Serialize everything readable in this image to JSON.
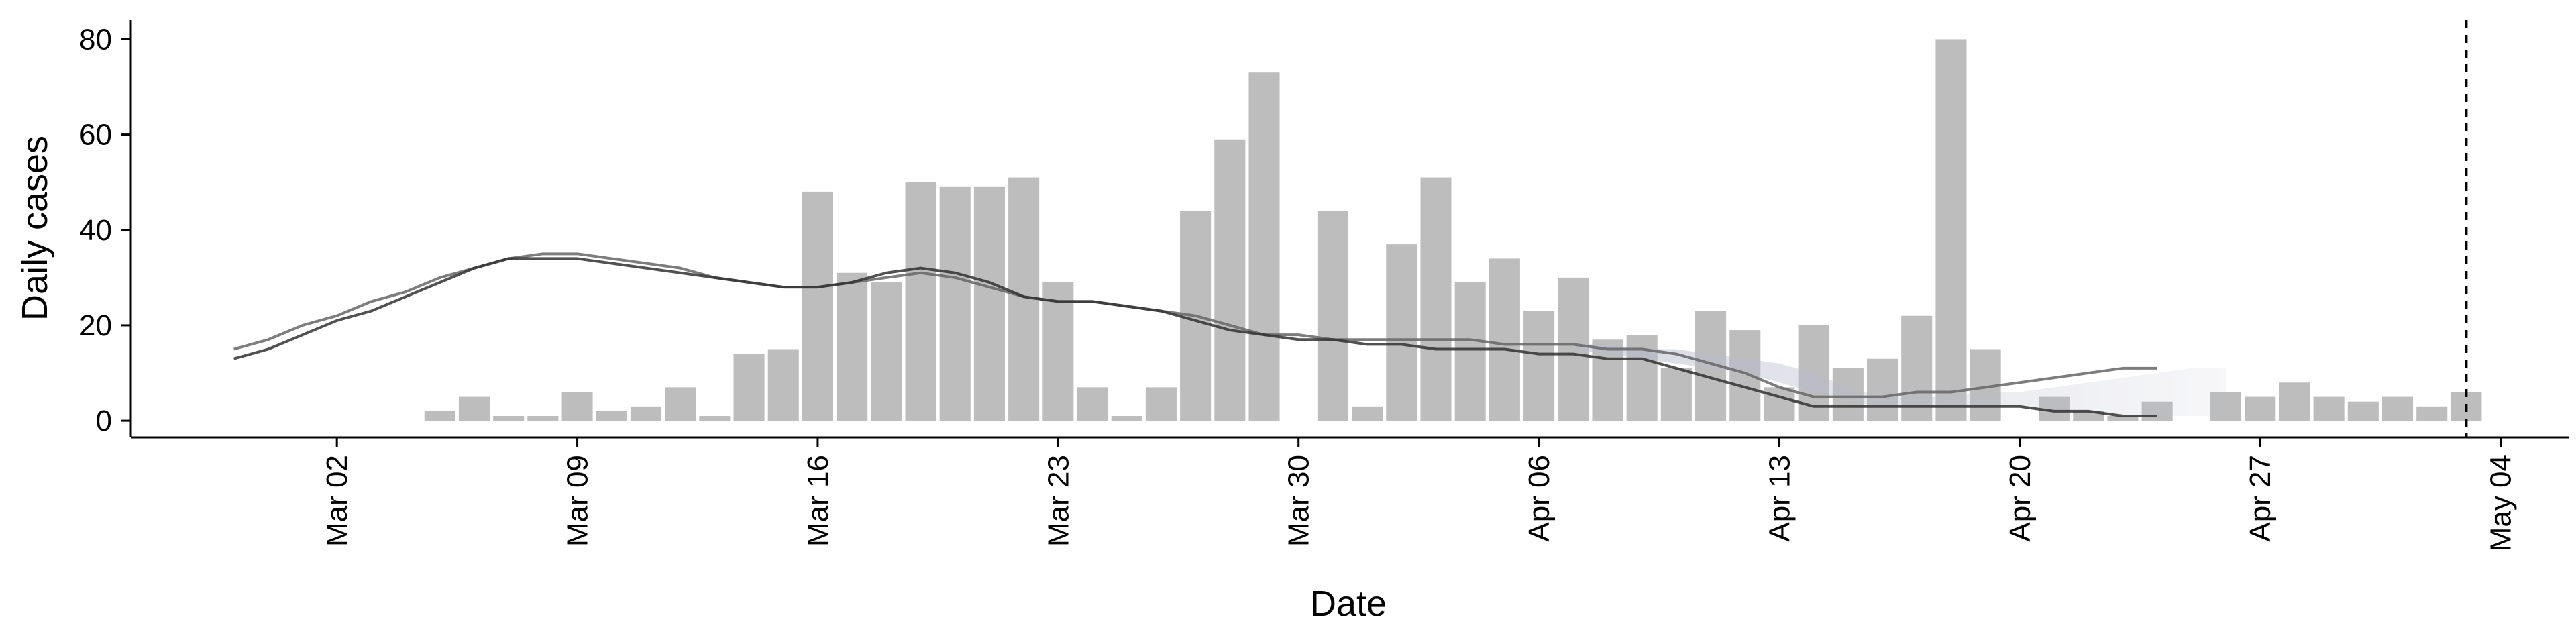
{
  "chart_data": {
    "type": "bar",
    "xlabel": "Date",
    "ylabel": "Daily cases",
    "ylim": [
      -3.5,
      84
    ],
    "yticks": [
      0,
      20,
      40,
      60,
      80
    ],
    "xticks": [
      {
        "date": "2020-03-02",
        "label": "Mar 02"
      },
      {
        "date": "2020-03-09",
        "label": "Mar 09"
      },
      {
        "date": "2020-03-16",
        "label": "Mar 16"
      },
      {
        "date": "2020-03-23",
        "label": "Mar 23"
      },
      {
        "date": "2020-03-30",
        "label": "Mar 30"
      },
      {
        "date": "2020-04-06",
        "label": "Apr 06"
      },
      {
        "date": "2020-04-13",
        "label": "Apr 13"
      },
      {
        "date": "2020-04-20",
        "label": "Apr 20"
      },
      {
        "date": "2020-04-27",
        "label": "Apr 27"
      },
      {
        "date": "2020-05-04",
        "label": "May 04"
      }
    ],
    "xlim": [
      "2020-02-25",
      "2020-05-06"
    ],
    "grid": false,
    "legend": "none",
    "colors": {
      "bars": "#bdbdbd",
      "line_dark": "#333333",
      "line_mid": "#666666",
      "ribbon": "#b8bccd",
      "vline": "#000000"
    },
    "bars": {
      "start_date": "2020-03-05",
      "values": [
        2,
        5,
        1,
        1,
        6,
        2,
        3,
        7,
        1,
        14,
        15,
        48,
        31,
        29,
        50,
        49,
        49,
        51,
        29,
        7,
        1,
        7,
        44,
        59,
        73,
        0,
        44,
        3,
        37,
        51,
        29,
        34,
        23,
        30,
        17,
        18,
        11,
        23,
        19,
        7,
        20,
        11,
        13,
        22,
        80,
        15,
        0,
        5,
        2,
        1,
        4,
        0,
        6,
        5,
        8,
        5,
        4,
        5,
        3,
        6
      ]
    },
    "series": [
      {
        "start_date": "2020-02-28",
        "values": [
          15,
          17,
          20,
          22,
          25,
          27,
          30,
          32,
          34,
          35,
          35,
          34,
          33,
          32,
          30,
          29,
          28,
          28,
          29,
          30,
          31,
          30,
          28,
          26,
          25,
          25,
          24,
          23,
          22,
          20,
          18,
          18,
          17,
          17,
          17,
          17,
          17,
          16,
          16,
          16,
          15,
          15,
          14,
          12,
          10,
          7,
          5,
          5,
          5,
          6,
          6,
          7,
          8,
          9,
          10,
          11,
          11
        ]
      },
      {
        "start_date": "2020-02-28",
        "values": [
          13,
          15,
          18,
          21,
          23,
          26,
          29,
          32,
          34,
          34,
          34,
          33,
          32,
          31,
          30,
          29,
          28,
          28,
          29,
          31,
          32,
          31,
          29,
          26,
          25,
          25,
          24,
          23,
          21,
          19,
          18,
          17,
          17,
          16,
          16,
          15,
          15,
          15,
          14,
          14,
          13,
          13,
          11,
          9,
          7,
          5,
          3,
          3,
          3,
          3,
          3,
          3,
          3,
          2,
          2,
          1,
          1
        ]
      }
    ],
    "ribbon": {
      "start_date": "2020-04-07",
      "upper": [
        16,
        16,
        15,
        15,
        14,
        13,
        12,
        10,
        7,
        5,
        5,
        5,
        6,
        6,
        7,
        8,
        9,
        10,
        11,
        11
      ],
      "lower": [
        15,
        14,
        13,
        12,
        11,
        10,
        8,
        6,
        4,
        3,
        3,
        3,
        3,
        3,
        2,
        2,
        1,
        1,
        1,
        1
      ]
    },
    "vline_date": "2020-05-03"
  }
}
